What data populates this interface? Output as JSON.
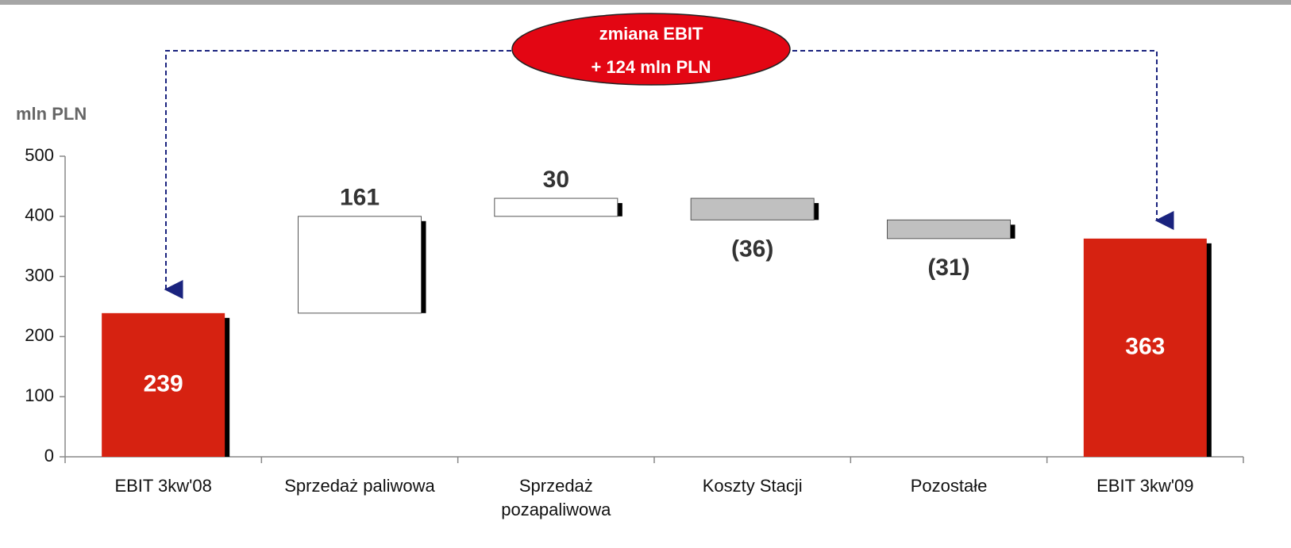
{
  "chart_data": {
    "type": "waterfall",
    "y_label": "mln PLN",
    "annotation": [
      "zmiana EBIT",
      "+ 124  mln PLN"
    ],
    "categories": [
      "EBIT 3kw'08",
      "Sprzedaż paliwowa",
      "Sprzedaż pozapaliwowa",
      "Koszty Stacji",
      "Pozostałe",
      "EBIT 3kw'09"
    ],
    "values": [
      239,
      161,
      30,
      -36,
      -31,
      363
    ],
    "value_labels": [
      "239",
      "161",
      "30",
      "(36)",
      "(31)",
      "363"
    ],
    "totals": [
      true,
      false,
      false,
      false,
      false,
      true
    ],
    "colors": [
      "#d62211",
      "#ffffff",
      "#ffffff",
      "#c0c0c0",
      "#c0c0c0",
      "#d62211"
    ],
    "ylim": [
      0,
      500
    ],
    "yticks": [
      0,
      100,
      200,
      300,
      400,
      500
    ]
  }
}
